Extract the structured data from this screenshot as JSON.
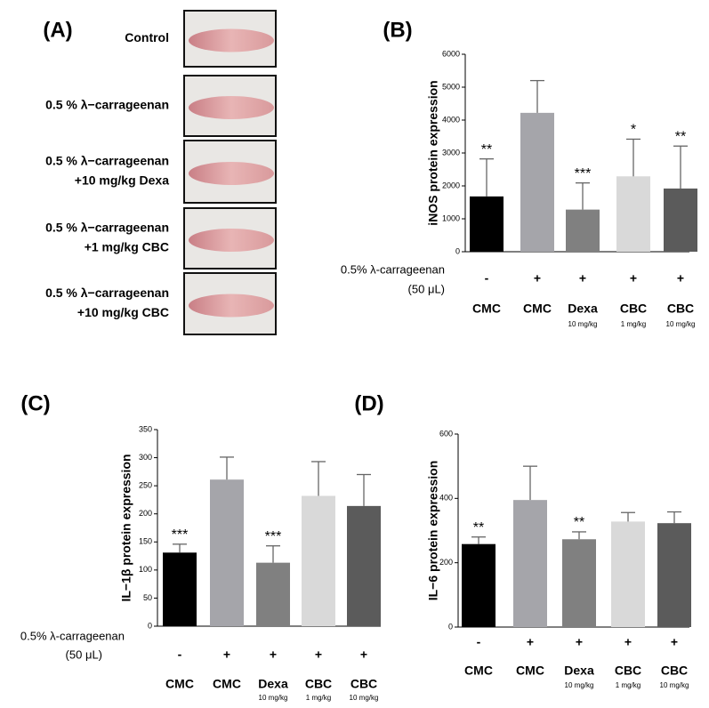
{
  "panel_a": {
    "label": "(A)",
    "rows": [
      [
        "Control"
      ],
      [
        "0.5 % λ−carrageenan"
      ],
      [
        "0.5 % λ−carrageenan",
        "+10 mg/kg Dexa"
      ],
      [
        "0.5 % λ−carrageenan",
        "+1 mg/kg CBC"
      ],
      [
        "0.5 % λ−carrageenan",
        "+10 mg/kg CBC"
      ]
    ]
  },
  "chart_data": [
    {
      "type": "bar",
      "panel_label": "(B)",
      "ylabel": "iNOS protein expression",
      "treatment_label": [
        "0.5% λ-carrageenan",
        "(50 μL)"
      ],
      "treatment": [
        "-",
        "+",
        "+",
        "+",
        "+"
      ],
      "categories": [
        "CMC",
        "CMC",
        "Dexa",
        "CBC",
        "CBC"
      ],
      "category_notes": [
        null,
        null,
        "10 mg/kg",
        "1 mg/kg",
        "10 mg/kg"
      ],
      "values": [
        1680,
        4220,
        1280,
        2290,
        1920
      ],
      "errors": [
        1140,
        980,
        810,
        1130,
        1290
      ],
      "annotations": [
        "**",
        null,
        "***",
        "*",
        "**"
      ],
      "colors": [
        "#000000",
        "#a5a5aa",
        "#808080",
        "#d9d9d9",
        "#5b5b5b"
      ],
      "ylim": [
        0,
        6000
      ],
      "yticks": [
        0,
        1000,
        2000,
        3000,
        4000,
        5000,
        6000
      ]
    },
    {
      "type": "bar",
      "panel_label": "(C)",
      "ylabel": "IL−1β protein expression",
      "treatment_label": [
        "0.5% λ-carrageenan",
        "(50 μL)"
      ],
      "treatment": [
        "-",
        "+",
        "+",
        "+",
        "+"
      ],
      "categories": [
        "CMC",
        "CMC",
        "Dexa",
        "CBC",
        "CBC"
      ],
      "category_notes": [
        null,
        null,
        "10 mg/kg",
        "1 mg/kg",
        "10 mg/kg"
      ],
      "values": [
        131,
        261,
        113,
        232,
        214
      ],
      "errors": [
        15,
        40,
        30,
        61,
        56
      ],
      "annotations": [
        "***",
        null,
        "***",
        null,
        null
      ],
      "colors": [
        "#000000",
        "#a5a5aa",
        "#808080",
        "#d9d9d9",
        "#5b5b5b"
      ],
      "ylim": [
        0,
        350
      ],
      "yticks": [
        0,
        50,
        100,
        150,
        200,
        250,
        300,
        350
      ]
    },
    {
      "type": "bar",
      "panel_label": "(D)",
      "ylabel": "IL−6 protein expression",
      "treatment": [
        "-",
        "+",
        "+",
        "+",
        "+"
      ],
      "categories": [
        "CMC",
        "CMC",
        "Dexa",
        "CBC",
        "CBC"
      ],
      "category_notes": [
        null,
        null,
        "10 mg/kg",
        "1 mg/kg",
        "10 mg/kg"
      ],
      "values": [
        258,
        395,
        273,
        328,
        323
      ],
      "errors": [
        22,
        105,
        23,
        28,
        35
      ],
      "annotations": [
        "**",
        null,
        "**",
        null,
        null
      ],
      "colors": [
        "#000000",
        "#a5a5aa",
        "#808080",
        "#d9d9d9",
        "#5b5b5b"
      ],
      "ylim": [
        0,
        600
      ],
      "yticks": [
        0,
        200,
        400,
        600
      ]
    }
  ]
}
